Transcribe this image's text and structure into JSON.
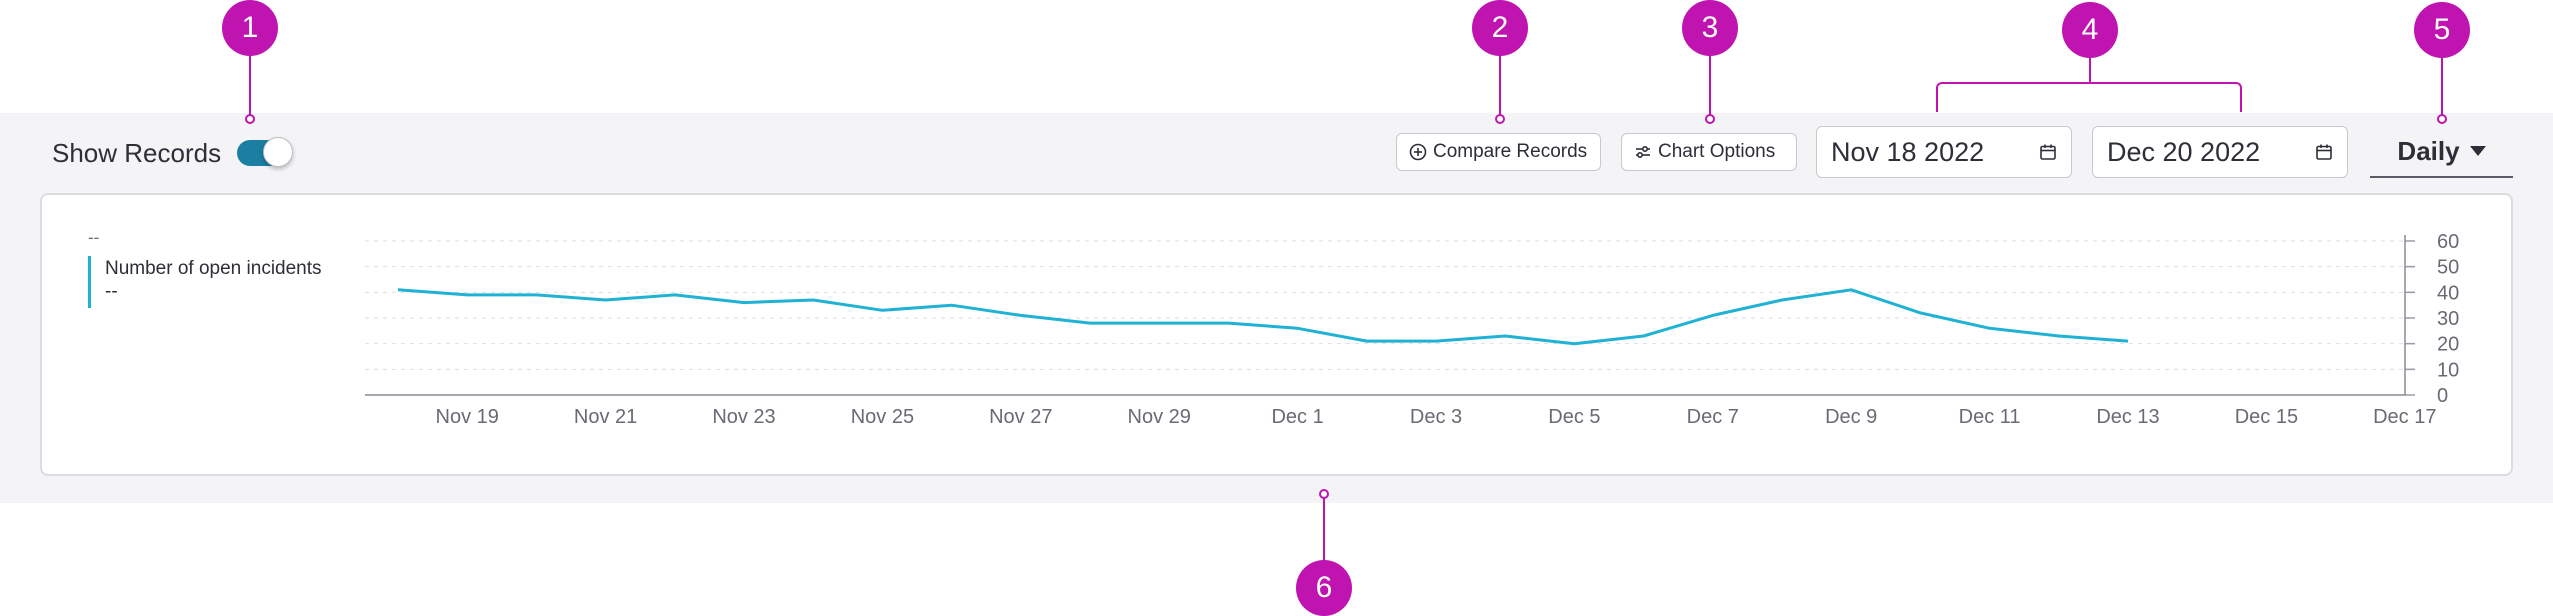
{
  "toolbar": {
    "show_records_label": "Show Records",
    "show_records_on": true,
    "compare_label": "Compare Records",
    "chart_options_label": "Chart Options",
    "date_start": "Nov 18 2022",
    "date_end": "Dec 20 2022",
    "interval": "Daily"
  },
  "legend": {
    "top_placeholder": "--",
    "series_name": "Number of open incidents",
    "series_value": "--"
  },
  "callouts": [
    "1",
    "2",
    "3",
    "4",
    "5",
    "6"
  ],
  "colors": {
    "accent": "#c014b0",
    "series": "#1fb2d4",
    "toggle": "#1a7fa0",
    "panel": "#f4f4f6"
  },
  "chart_data": {
    "type": "line",
    "xlabel": "",
    "ylabel": "",
    "x_ticks": [
      "Nov 19",
      "Nov 21",
      "Nov 23",
      "Nov 25",
      "Nov 27",
      "Nov 29",
      "Dec 1",
      "Dec 3",
      "Dec 5",
      "Dec 7",
      "Dec 9",
      "Dec 11",
      "Dec 13",
      "Dec 15",
      "Dec 17"
    ],
    "y_ticks": [
      0,
      10,
      20,
      30,
      40,
      50,
      60
    ],
    "ylim": [
      0,
      60
    ],
    "y_axis_side": "right",
    "grid": true,
    "x": [
      "Nov 18",
      "Nov 19",
      "Nov 20",
      "Nov 21",
      "Nov 22",
      "Nov 23",
      "Nov 24",
      "Nov 25",
      "Nov 26",
      "Nov 27",
      "Nov 28",
      "Nov 29",
      "Nov 30",
      "Dec 1",
      "Dec 2",
      "Dec 3",
      "Dec 4",
      "Dec 5",
      "Dec 6",
      "Dec 7",
      "Dec 8",
      "Dec 9",
      "Dec 10",
      "Dec 11",
      "Dec 12",
      "Dec 13"
    ],
    "series": [
      {
        "values": [
          41,
          39,
          39,
          37,
          39,
          36,
          37,
          33,
          35,
          31,
          28,
          28,
          28,
          26,
          21,
          21,
          23,
          20,
          23,
          31,
          37,
          41,
          32,
          26,
          23,
          21
        ]
      }
    ]
  }
}
